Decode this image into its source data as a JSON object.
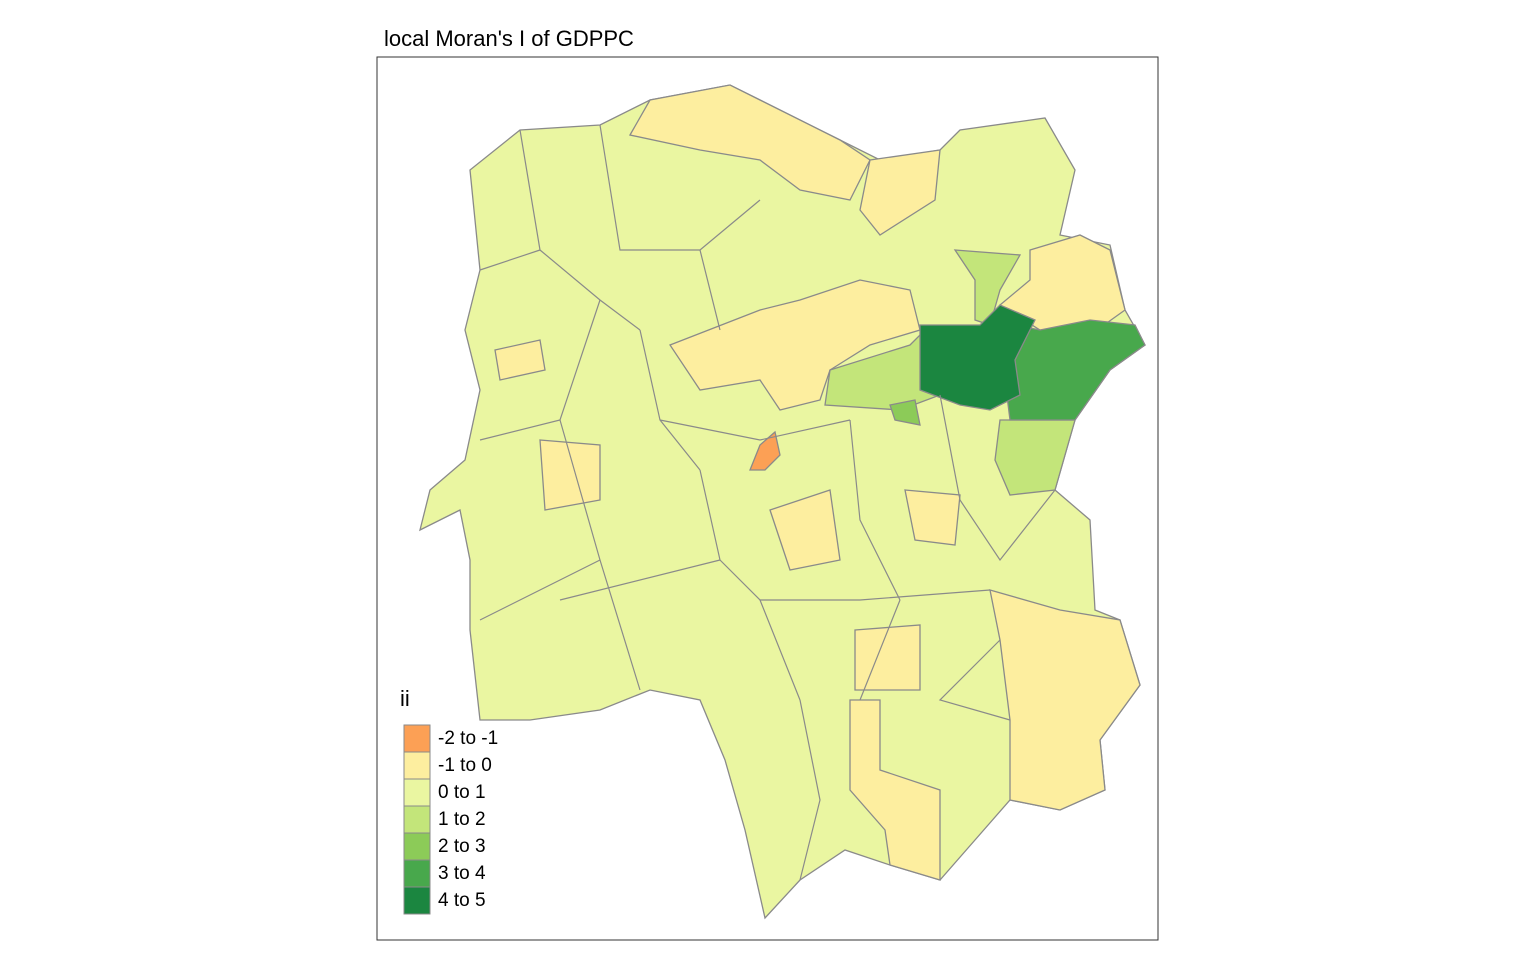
{
  "title": "local Moran's I of GDPPC",
  "legend": {
    "title": "ii",
    "items": [
      {
        "label": "-2 to -1",
        "color": "#fca055"
      },
      {
        "label": "-1 to 0",
        "color": "#fdee9f"
      },
      {
        "label": "0 to 1",
        "color": "#eaf6a1"
      },
      {
        "label": "1 to 2",
        "color": "#c3e57a"
      },
      {
        "label": "2 to 3",
        "color": "#8ccb58"
      },
      {
        "label": "3 to 4",
        "color": "#48a84c"
      },
      {
        "label": "4 to 5",
        "color": "#1b8640"
      }
    ]
  }
}
